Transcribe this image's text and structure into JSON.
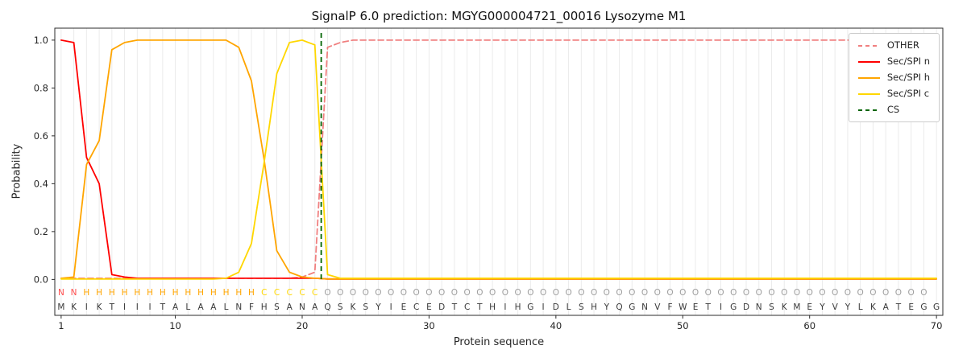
{
  "chart_data": {
    "type": "line",
    "title": "SignalP 6.0 prediction: MGYG000004721_00016 Lysozyme M1",
    "xlabel": "Protein sequence",
    "ylabel": "Probability",
    "xlim": [
      0.5,
      70.5
    ],
    "ylim": [
      -0.15,
      1.05
    ],
    "xticks": [
      1,
      10,
      20,
      30,
      40,
      50,
      60,
      70
    ],
    "yticks": [
      0.0,
      0.2,
      0.4,
      0.6,
      0.8,
      1.0
    ],
    "grid": "vertical line per residue",
    "legend_position": "upper right",
    "x": [
      1,
      2,
      3,
      4,
      5,
      6,
      7,
      8,
      9,
      10,
      11,
      12,
      13,
      14,
      15,
      16,
      17,
      18,
      19,
      20,
      21,
      22,
      23,
      24,
      25,
      26,
      27,
      28,
      29,
      30,
      31,
      32,
      33,
      34,
      35,
      36,
      37,
      38,
      39,
      40,
      41,
      42,
      43,
      44,
      45,
      46,
      47,
      48,
      49,
      50,
      51,
      52,
      53,
      54,
      55,
      56,
      57,
      58,
      59,
      60,
      61,
      62,
      63,
      64,
      65,
      66,
      67,
      68,
      69,
      70
    ],
    "series": [
      {
        "name": "OTHER",
        "color": "#f08080",
        "style": "dashed",
        "values": [
          0.005,
          0.005,
          0.005,
          0.005,
          0.005,
          0.005,
          0.005,
          0.005,
          0.005,
          0.005,
          0.005,
          0.005,
          0.005,
          0.005,
          0.005,
          0.005,
          0.005,
          0.005,
          0.005,
          0.01,
          0.03,
          0.97,
          0.99,
          1.0,
          1.0,
          1.0,
          1.0,
          1.0,
          1.0,
          1.0,
          1.0,
          1.0,
          1.0,
          1.0,
          1.0,
          1.0,
          1.0,
          1.0,
          1.0,
          1.0,
          1.0,
          1.0,
          1.0,
          1.0,
          1.0,
          1.0,
          1.0,
          1.0,
          1.0,
          1.0,
          1.0,
          1.0,
          1.0,
          1.0,
          1.0,
          1.0,
          1.0,
          1.0,
          1.0,
          1.0,
          1.0,
          1.0,
          1.0,
          1.0,
          1.0,
          1.0,
          1.0,
          1.0,
          1.0,
          1.0
        ]
      },
      {
        "name": "Sec/SPI n",
        "color": "#ff0000",
        "style": "solid",
        "values": [
          1.0,
          0.99,
          0.51,
          0.4,
          0.02,
          0.01,
          0.005,
          0.005,
          0.005,
          0.005,
          0.005,
          0.005,
          0.005,
          0.005,
          0.005,
          0.005,
          0.005,
          0.005,
          0.005,
          0.005,
          0.005,
          0.002,
          0.002,
          0.002,
          0.002,
          0.002,
          0.002,
          0.002,
          0.002,
          0.002,
          0.002,
          0.002,
          0.002,
          0.002,
          0.002,
          0.002,
          0.002,
          0.002,
          0.002,
          0.002,
          0.002,
          0.002,
          0.002,
          0.002,
          0.002,
          0.002,
          0.002,
          0.002,
          0.002,
          0.002,
          0.002,
          0.002,
          0.002,
          0.002,
          0.002,
          0.002,
          0.002,
          0.002,
          0.002,
          0.002,
          0.002,
          0.002,
          0.002,
          0.002,
          0.002,
          0.002,
          0.002,
          0.002,
          0.002,
          0.002
        ]
      },
      {
        "name": "Sec/SPI h",
        "color": "#ffa500",
        "style": "solid",
        "values": [
          0.005,
          0.01,
          0.48,
          0.58,
          0.96,
          0.99,
          1.0,
          1.0,
          1.0,
          1.0,
          1.0,
          1.0,
          1.0,
          1.0,
          0.97,
          0.83,
          0.5,
          0.12,
          0.03,
          0.01,
          0.005,
          0.002,
          0.002,
          0.002,
          0.002,
          0.002,
          0.002,
          0.002,
          0.002,
          0.002,
          0.002,
          0.002,
          0.002,
          0.002,
          0.002,
          0.002,
          0.002,
          0.002,
          0.002,
          0.002,
          0.002,
          0.002,
          0.002,
          0.002,
          0.002,
          0.002,
          0.002,
          0.002,
          0.002,
          0.002,
          0.002,
          0.002,
          0.002,
          0.002,
          0.002,
          0.002,
          0.002,
          0.002,
          0.002,
          0.002,
          0.002,
          0.002,
          0.002,
          0.002,
          0.002,
          0.002,
          0.002,
          0.002,
          0.002,
          0.002
        ]
      },
      {
        "name": "Sec/SPI c",
        "color": "#ffd700",
        "style": "solid",
        "values": [
          0.002,
          0.002,
          0.002,
          0.002,
          0.002,
          0.002,
          0.002,
          0.002,
          0.002,
          0.002,
          0.002,
          0.002,
          0.002,
          0.005,
          0.03,
          0.15,
          0.49,
          0.86,
          0.99,
          1.0,
          0.98,
          0.02,
          0.005,
          0.005,
          0.005,
          0.005,
          0.005,
          0.005,
          0.005,
          0.005,
          0.005,
          0.005,
          0.005,
          0.005,
          0.005,
          0.005,
          0.005,
          0.005,
          0.005,
          0.005,
          0.005,
          0.005,
          0.005,
          0.005,
          0.005,
          0.005,
          0.005,
          0.005,
          0.005,
          0.005,
          0.005,
          0.005,
          0.005,
          0.005,
          0.005,
          0.005,
          0.005,
          0.005,
          0.005,
          0.005,
          0.005,
          0.005,
          0.005,
          0.005,
          0.005,
          0.005,
          0.005,
          0.005,
          0.005,
          0.005
        ]
      }
    ],
    "cs_marker": {
      "name": "CS",
      "x": 21.5,
      "color": "#006400",
      "style": "dashed"
    },
    "sequence": "MKIKTIIITALAALNFHSANAQSKSYIECEDTCTHIHGIDLSHYQGNVFWETIGDNSKMEYVYLKATEGG",
    "region_labels": "NNHHHHHHHHHHHHHHCCCCCOOOOOOOOOOOOOOOOOOOOOOOOOOOOOOOOOOOOOOOOOOOOOOOO",
    "region_colors": {
      "N": "#ff4d4d",
      "H": "#ffa500",
      "C": "#ffd700",
      "O": "#9e9e9e"
    },
    "sequence_color": "#3a3a3a"
  }
}
